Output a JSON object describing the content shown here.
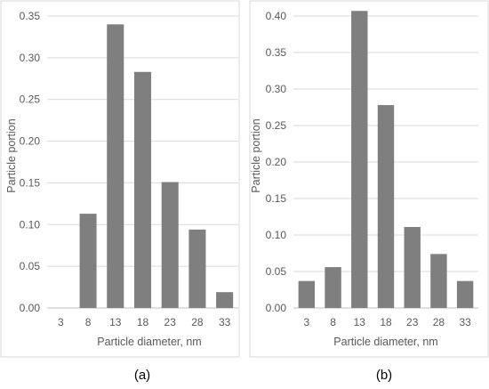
{
  "chart_data": [
    {
      "type": "bar",
      "panel_label": "(a)",
      "categories": [
        "3",
        "8",
        "13",
        "18",
        "23",
        "28",
        "33"
      ],
      "values": [
        0,
        0.113,
        0.34,
        0.283,
        0.151,
        0.094,
        0.019
      ],
      "xlabel": "Particle diameter, nm",
      "ylabel": "Particle portion",
      "ylim": [
        0,
        0.35
      ],
      "yticks": [
        "0.00",
        "0.05",
        "0.10",
        "0.15",
        "0.20",
        "0.25",
        "0.30",
        "0.35"
      ],
      "bar_color": "#7f7f7f",
      "grid": true
    },
    {
      "type": "bar",
      "panel_label": "(b)",
      "categories": [
        "3",
        "8",
        "13",
        "18",
        "23",
        "28",
        "33"
      ],
      "values": [
        0.037,
        0.056,
        0.407,
        0.278,
        0.111,
        0.074,
        0.037
      ],
      "xlabel": "Particle diameter, nm",
      "ylabel": "Particle portion",
      "ylim": [
        0,
        0.4
      ],
      "yticks": [
        "0.00",
        "0.05",
        "0.10",
        "0.15",
        "0.20",
        "0.25",
        "0.30",
        "0.35",
        "0.40"
      ],
      "bar_color": "#7f7f7f",
      "grid": true
    }
  ]
}
